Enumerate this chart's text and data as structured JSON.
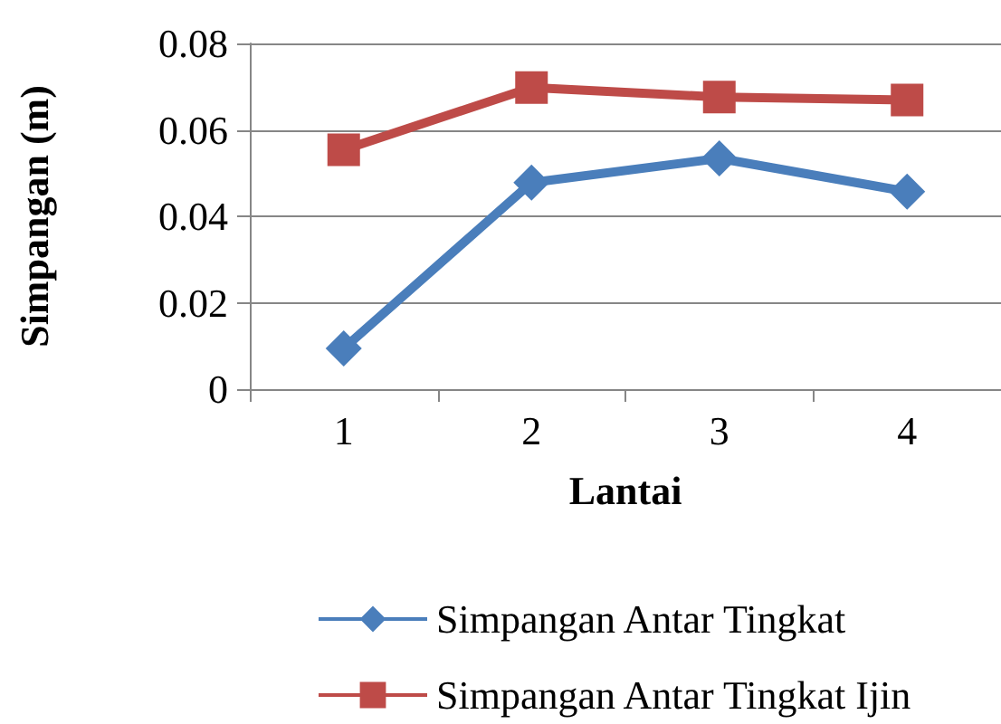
{
  "chart_data": {
    "type": "line",
    "xlabel": "Lantai",
    "ylabel": "Simpangan (m)",
    "categories": [
      "1",
      "2",
      "3",
      "4"
    ],
    "series": [
      {
        "name": "Simpangan Antar Tingkat",
        "color": "#4a7ebb",
        "marker": "diamond",
        "values": [
          0.0094,
          0.0478,
          0.0534,
          0.0457
        ]
      },
      {
        "name": "Simpangan Antar Tingkat Ijin",
        "color": "#be4b48",
        "marker": "square",
        "values": [
          0.0554,
          0.0698,
          0.0676,
          0.0669
        ]
      }
    ],
    "ylim": [
      0,
      0.08
    ],
    "yticks": [
      0,
      0.02,
      0.04,
      0.06,
      0.08
    ],
    "grid": "y",
    "legend": "bottom"
  }
}
